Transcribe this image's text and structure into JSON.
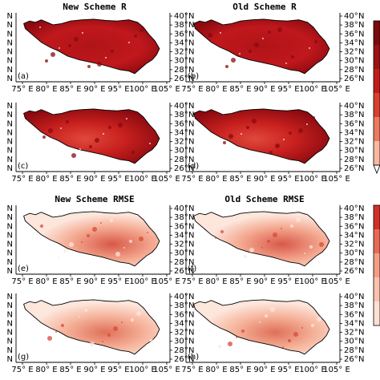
{
  "titles": {
    "new_r": "New Scheme R",
    "old_r": "Old Scheme R",
    "new_rmse": "New Scheme RMSE",
    "old_rmse": "Old Scheme RMSE"
  },
  "panels": [
    {
      "letter": "(a)",
      "variable": "R"
    },
    {
      "letter": "(b)",
      "variable": "R"
    },
    {
      "letter": "(c)",
      "variable": "R"
    },
    {
      "letter": "(d)",
      "variable": "R"
    },
    {
      "letter": "(e)",
      "variable": "RMSE"
    },
    {
      "letter": "(f)",
      "variable": "RMSE"
    },
    {
      "letter": "(g)",
      "variable": "RMSE"
    },
    {
      "letter": "(h)",
      "variable": "RMSE"
    }
  ],
  "axes": {
    "lon_ticks": [
      "75° E",
      "80° E",
      "85° E",
      "90° E",
      "95° E",
      "100° E",
      "105° E"
    ],
    "lat_ticks": [
      "40°",
      "38°",
      "36°",
      "34°",
      "32°",
      "30°",
      "28°",
      "26°"
    ],
    "lat_suffix": "N"
  },
  "colors": {
    "r_fill": "#c0181c",
    "r_fill_dark": "#8a0a10",
    "r_fill_light": "#e0483c",
    "rmse_fill": "#f8c4b0",
    "rmse_fill_dark": "#d85848",
    "rmse_fill_light": "#fde6dc",
    "colorbar_r_top": "#7a0a0e",
    "colorbar_rmse_top": "#d03028",
    "outline": "#000000"
  }
}
